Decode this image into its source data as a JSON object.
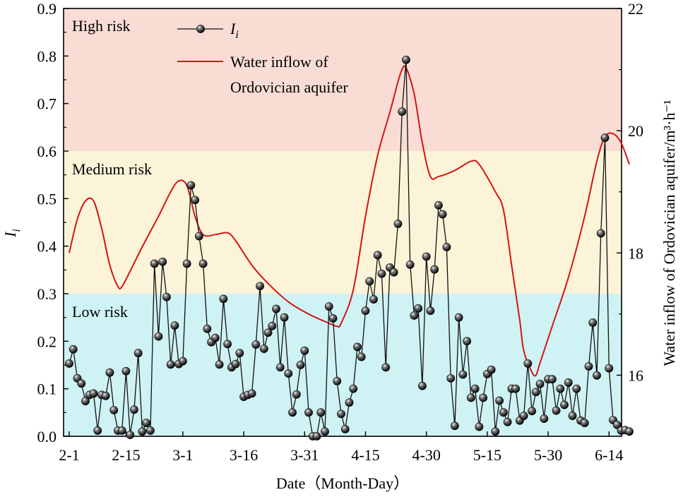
{
  "chart_data": {
    "type": "line",
    "title": "",
    "xlabel": "Date（Month-Day）",
    "ylabel": "I",
    "ylabel_sub": "i",
    "y2label": "Water inflow of Ordovician aquifer/m³·h⁻¹",
    "ylim": [
      0,
      0.9
    ],
    "y2lim": [
      15,
      22
    ],
    "xlim": [
      1,
      135
    ],
    "x_ticks": [
      {
        "pos": 1,
        "label": "2-1"
      },
      {
        "pos": 15,
        "label": "2-15"
      },
      {
        "pos": 29,
        "label": "3-1"
      },
      {
        "pos": 44,
        "label": "3-16"
      },
      {
        "pos": 59,
        "label": "3-31"
      },
      {
        "pos": 74,
        "label": "4-15"
      },
      {
        "pos": 89,
        "label": "4-30"
      },
      {
        "pos": 104,
        "label": "5-15"
      },
      {
        "pos": 119,
        "label": "5-30"
      },
      {
        "pos": 134,
        "label": "6-14"
      }
    ],
    "y_ticks": [
      "0.0",
      "0.1",
      "0.2",
      "0.3",
      "0.4",
      "0.5",
      "0.6",
      "0.7",
      "0.8",
      "0.9"
    ],
    "y2_ticks": [
      "16",
      "18",
      "20",
      "22"
    ],
    "zones": [
      {
        "label": "Low risk",
        "from": 0,
        "to": 0.3,
        "color": "#cff2f4"
      },
      {
        "label": "Medium risk",
        "from": 0.3,
        "to": 0.6,
        "color": "#fbf4d8"
      },
      {
        "label": "High risk",
        "from": 0.6,
        "to": 0.9,
        "color": "#f9ddd4"
      }
    ],
    "legend": {
      "position": "top-left",
      "entries": [
        {
          "name_main": "I",
          "name_sub": "i",
          "style": "black line with sphere markers"
        },
        {
          "name_line1": "Water inflow of",
          "name_line2": "Ordovician aquifer",
          "style": "red line"
        }
      ]
    },
    "series": [
      {
        "name": "Ii",
        "axis": "left",
        "color": "#111111",
        "points": [
          [
            1,
            0.153
          ],
          [
            2,
            0.183
          ],
          [
            3,
            0.122
          ],
          [
            4,
            0.111
          ],
          [
            5,
            0.074
          ],
          [
            6,
            0.087
          ],
          [
            7,
            0.09
          ],
          [
            8,
            0.012
          ],
          [
            9,
            0.087
          ],
          [
            10,
            0.085
          ],
          [
            11,
            0.134
          ],
          [
            12,
            0.055
          ],
          [
            13,
            0.012
          ],
          [
            14,
            0.012
          ],
          [
            15,
            0.137
          ],
          [
            16,
            0.003
          ],
          [
            17,
            0.056
          ],
          [
            18,
            0.175
          ],
          [
            19,
            0.01
          ],
          [
            20,
            0.028
          ],
          [
            21,
            0.012
          ],
          [
            22,
            0.363
          ],
          [
            23,
            0.21
          ],
          [
            24,
            0.367
          ],
          [
            25,
            0.293
          ],
          [
            26,
            0.151
          ],
          [
            27,
            0.233
          ],
          [
            28,
            0.152
          ],
          [
            29,
            0.158
          ],
          [
            30,
            0.363
          ],
          [
            31,
            0.528
          ],
          [
            32,
            0.497
          ],
          [
            33,
            0.421
          ],
          [
            34,
            0.363
          ],
          [
            35,
            0.226
          ],
          [
            36,
            0.198
          ],
          [
            37,
            0.207
          ],
          [
            38,
            0.151
          ],
          [
            39,
            0.289
          ],
          [
            40,
            0.194
          ],
          [
            41,
            0.145
          ],
          [
            42,
            0.152
          ],
          [
            43,
            0.175
          ],
          [
            44,
            0.083
          ],
          [
            45,
            0.087
          ],
          [
            46,
            0.09
          ],
          [
            47,
            0.193
          ],
          [
            48,
            0.316
          ],
          [
            49,
            0.184
          ],
          [
            50,
            0.218
          ],
          [
            51,
            0.232
          ],
          [
            52,
            0.268
          ],
          [
            53,
            0.145
          ],
          [
            54,
            0.25
          ],
          [
            55,
            0.132
          ],
          [
            56,
            0.05
          ],
          [
            57,
            0.088
          ],
          [
            58,
            0.15
          ],
          [
            59,
            0.18
          ],
          [
            60,
            0.05
          ],
          [
            61,
            0.0
          ],
          [
            62,
            0.0
          ],
          [
            63,
            0.05
          ],
          [
            64,
            0.01
          ],
          [
            65,
            0.273
          ],
          [
            66,
            0.248
          ],
          [
            67,
            0.116
          ],
          [
            68,
            0.047
          ],
          [
            69,
            0.015
          ],
          [
            70,
            0.071
          ],
          [
            71,
            0.1
          ],
          [
            72,
            0.188
          ],
          [
            73,
            0.167
          ],
          [
            74,
            0.264
          ],
          [
            75,
            0.326
          ],
          [
            76,
            0.288
          ],
          [
            77,
            0.381
          ],
          [
            78,
            0.342
          ],
          [
            79,
            0.145
          ],
          [
            80,
            0.355
          ],
          [
            81,
            0.345
          ],
          [
            82,
            0.447
          ],
          [
            83,
            0.683
          ],
          [
            84,
            0.792
          ],
          [
            85,
            0.361
          ],
          [
            86,
            0.254
          ],
          [
            87,
            0.269
          ],
          [
            88,
            0.106
          ],
          [
            89,
            0.378
          ],
          [
            90,
            0.264
          ],
          [
            91,
            0.351
          ],
          [
            92,
            0.486
          ],
          [
            93,
            0.467
          ],
          [
            94,
            0.398
          ],
          [
            95,
            0.122
          ],
          [
            96,
            0.022
          ],
          [
            97,
            0.25
          ],
          [
            98,
            0.13
          ],
          [
            99,
            0.2
          ],
          [
            100,
            0.081
          ],
          [
            101,
            0.1
          ],
          [
            102,
            0.02
          ],
          [
            103,
            0.081
          ],
          [
            104,
            0.131
          ],
          [
            105,
            0.14
          ],
          [
            106,
            0.01
          ],
          [
            107,
            0.075
          ],
          [
            108,
            0.05
          ],
          [
            109,
            0.03
          ],
          [
            110,
            0.1
          ],
          [
            111,
            0.1
          ],
          [
            112,
            0.033
          ],
          [
            113,
            0.043
          ],
          [
            114,
            0.153
          ],
          [
            115,
            0.053
          ],
          [
            116,
            0.093
          ],
          [
            117,
            0.11
          ],
          [
            118,
            0.037
          ],
          [
            119,
            0.12
          ],
          [
            120,
            0.12
          ],
          [
            121,
            0.054
          ],
          [
            122,
            0.1
          ],
          [
            123,
            0.066
          ],
          [
            124,
            0.113
          ],
          [
            125,
            0.043
          ],
          [
            126,
            0.1
          ],
          [
            127,
            0.033
          ],
          [
            128,
            0.028
          ],
          [
            129,
            0.147
          ],
          [
            130,
            0.239
          ],
          [
            131,
            0.128
          ],
          [
            132,
            0.427
          ],
          [
            133,
            0.628
          ],
          [
            134,
            0.143
          ],
          [
            135,
            0.034
          ],
          [
            136,
            0.024
          ],
          [
            137,
            0.012
          ],
          [
            138,
            0.013
          ],
          [
            139,
            0.01
          ]
        ]
      },
      {
        "name": "Water inflow of Ordovician aquifer",
        "axis": "right",
        "color": "#d41414",
        "points": [
          [
            1,
            18.0
          ],
          [
            3,
            18.55
          ],
          [
            5,
            18.85
          ],
          [
            7,
            18.85
          ],
          [
            9,
            18.4
          ],
          [
            11,
            17.8
          ],
          [
            13,
            17.45
          ],
          [
            14,
            17.45
          ],
          [
            16,
            17.7
          ],
          [
            19,
            18.1
          ],
          [
            23,
            18.6
          ],
          [
            26,
            19.0
          ],
          [
            28,
            19.18
          ],
          [
            30,
            19.1
          ],
          [
            32,
            18.6
          ],
          [
            34,
            18.3
          ],
          [
            37,
            18.3
          ],
          [
            40,
            18.33
          ],
          [
            42,
            18.2
          ],
          [
            46,
            17.8
          ],
          [
            50,
            17.5
          ],
          [
            55,
            17.2
          ],
          [
            60,
            17.0
          ],
          [
            65,
            16.85
          ],
          [
            67,
            16.8
          ],
          [
            68,
            16.85
          ],
          [
            71,
            17.4
          ],
          [
            74,
            18.6
          ],
          [
            77,
            19.6
          ],
          [
            80,
            20.3
          ],
          [
            82,
            20.8
          ],
          [
            83,
            21.0
          ],
          [
            84,
            21.03
          ],
          [
            86,
            20.6
          ],
          [
            88,
            19.8
          ],
          [
            90,
            19.25
          ],
          [
            92,
            19.25
          ],
          [
            96,
            19.35
          ],
          [
            100,
            19.5
          ],
          [
            102,
            19.45
          ],
          [
            106,
            19.0
          ],
          [
            108,
            18.7
          ],
          [
            110,
            17.8
          ],
          [
            112,
            16.9
          ],
          [
            113,
            16.4
          ],
          [
            115,
            16.05
          ],
          [
            116,
            16.0
          ],
          [
            117,
            16.2
          ],
          [
            120,
            16.8
          ],
          [
            124,
            17.6
          ],
          [
            128,
            18.6
          ],
          [
            131,
            19.5
          ],
          [
            133,
            19.9
          ],
          [
            135,
            19.95
          ],
          [
            137,
            19.8
          ],
          [
            139,
            19.45
          ]
        ]
      }
    ]
  }
}
